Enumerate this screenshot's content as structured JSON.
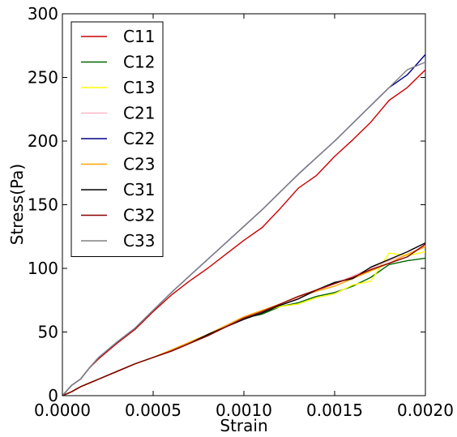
{
  "chart_data": {
    "type": "line",
    "title": "",
    "xlabel": "Strain",
    "ylabel": "Stress(Pa)",
    "xlim": [
      0.0,
      0.002
    ],
    "ylim": [
      0,
      300
    ],
    "x_ticks": [
      0.0,
      0.0005,
      0.001,
      0.0015,
      0.002
    ],
    "x_tick_labels": [
      "0.0000",
      "0.0005",
      "0.0010",
      "0.0015",
      "0.0020"
    ],
    "y_ticks": [
      0,
      50,
      100,
      150,
      200,
      250,
      300
    ],
    "y_tick_labels": [
      "0",
      "50",
      "100",
      "150",
      "200",
      "250",
      "300"
    ],
    "grid": false,
    "legend_position": "top-left",
    "x": [
      0.0,
      5e-05,
      0.0001,
      0.00015,
      0.0002,
      0.0003,
      0.0004,
      0.0005,
      0.0006,
      0.0007,
      0.0008,
      0.0009,
      0.001,
      0.0011,
      0.0012,
      0.0013,
      0.0014,
      0.0015,
      0.0016,
      0.0017,
      0.0018,
      0.0019,
      0.002
    ],
    "series": [
      {
        "name": "C11",
        "color": "#cc0000",
        "values": [
          0,
          8,
          13,
          22,
          29,
          41,
          52,
          66,
          79,
          90,
          100,
          111,
          122,
          132,
          147,
          163,
          173,
          188,
          201,
          215,
          232,
          242,
          256
        ]
      },
      {
        "name": "C12",
        "color": "#006400",
        "values": [
          0,
          3,
          7,
          10,
          13,
          19,
          25,
          30,
          35,
          41,
          47,
          54,
          61,
          64,
          70,
          73,
          78,
          81,
          86,
          93,
          103,
          106,
          108
        ]
      },
      {
        "name": "C13",
        "color": "#ffff00",
        "values": [
          0,
          3,
          7,
          10,
          13,
          19,
          25,
          30,
          35,
          42,
          48,
          55,
          61,
          66,
          70,
          72,
          77,
          80,
          87,
          90,
          112,
          110,
          113
        ]
      },
      {
        "name": "C21",
        "color": "#ffb6c1",
        "values": [
          0,
          3,
          7,
          10,
          13,
          19,
          25,
          30,
          35,
          41,
          48,
          55,
          61,
          66,
          71,
          77,
          82,
          88,
          94,
          100,
          106,
          111,
          118
        ]
      },
      {
        "name": "C22",
        "color": "#00008b",
        "values": [
          0,
          8,
          13,
          22,
          30,
          42,
          53,
          67,
          81,
          94,
          107,
          120,
          133,
          146,
          160,
          174,
          187,
          200,
          214,
          228,
          242,
          252,
          268
        ]
      },
      {
        "name": "C23",
        "color": "#ffa500",
        "values": [
          0,
          3,
          7,
          10,
          13,
          19,
          25,
          30,
          36,
          42,
          48,
          55,
          62,
          67,
          72,
          78,
          82,
          86,
          92,
          98,
          104,
          111,
          117
        ]
      },
      {
        "name": "C31",
        "color": "#000000",
        "values": [
          0,
          3,
          7,
          10,
          13,
          19,
          25,
          30,
          35,
          41,
          48,
          54,
          60,
          65,
          71,
          76,
          83,
          89,
          92,
          101,
          107,
          113,
          120
        ]
      },
      {
        "name": "C32",
        "color": "#8b0000",
        "values": [
          0,
          3,
          7,
          10,
          13,
          19,
          25,
          30,
          35,
          41,
          47,
          54,
          61,
          66,
          72,
          78,
          83,
          88,
          93,
          99,
          104,
          109,
          119
        ]
      },
      {
        "name": "C33",
        "color": "#808080",
        "values": [
          0,
          8,
          13,
          22,
          30,
          42,
          53,
          67,
          81,
          94,
          107,
          120,
          133,
          146,
          160,
          174,
          187,
          200,
          214,
          228,
          242,
          256,
          262
        ]
      }
    ]
  }
}
